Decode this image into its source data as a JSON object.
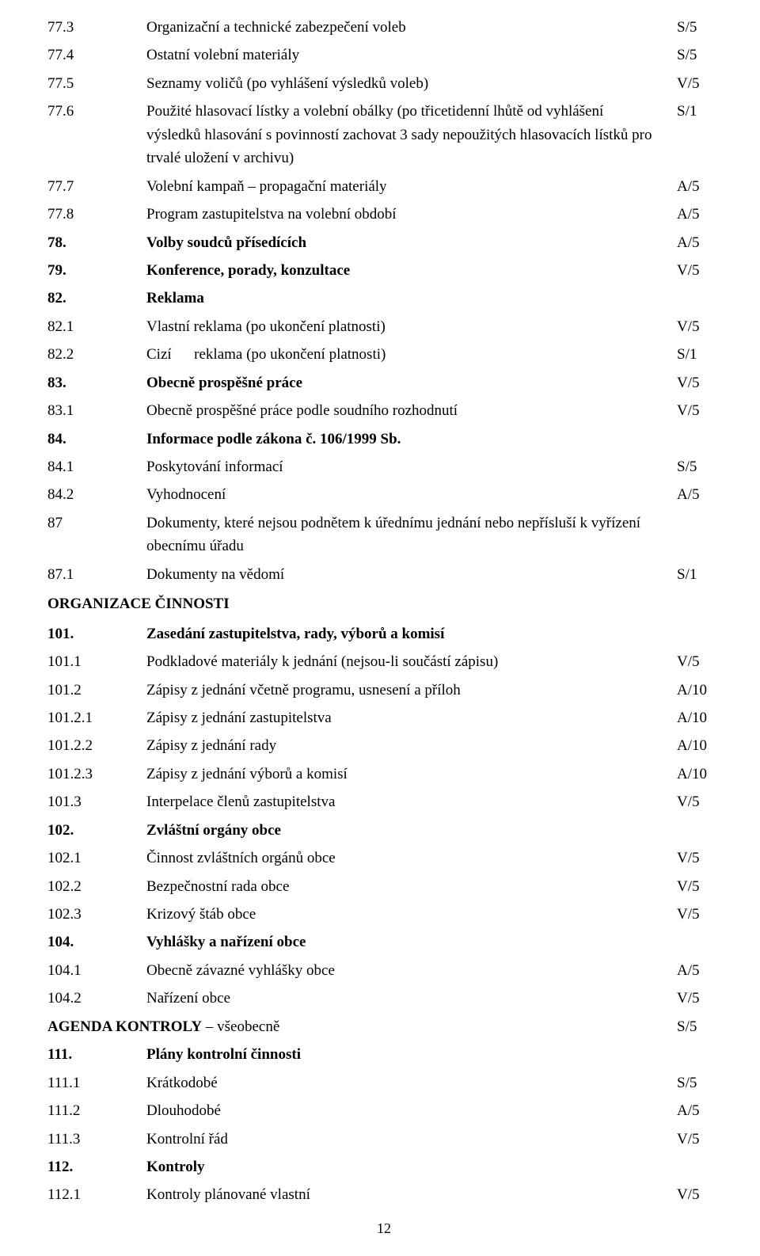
{
  "rows": [
    {
      "num": "77.3",
      "desc": "Organizační a technické zabezpečení voleb",
      "mark": "S/5"
    },
    {
      "num": "77.4",
      "desc": "Ostatní volební materiály",
      "mark": "S/5"
    },
    {
      "num": "77.5",
      "desc": "Seznamy voličů (po vyhlášení výsledků voleb)",
      "mark": "V/5"
    },
    {
      "num": "77.6",
      "desc": "Použité hlasovací lístky a volební obálky (po třicetidenní lhůtě od vyhlášení výsledků hlasování s povinností zachovat 3 sady nepoužitých hlasovacích lístků pro trvalé uložení v archivu)",
      "mark": "S/1"
    },
    {
      "num": "77.7",
      "desc": "Volební kampaň – propagační materiály",
      "mark": "A/5"
    },
    {
      "num": "77.8",
      "desc": "Program zastupitelstva na volební období",
      "mark": "A/5"
    },
    {
      "num": "78.",
      "desc": "Volby soudců přísedících",
      "mark": "A/5",
      "bold": true
    },
    {
      "num": "79.",
      "desc": "Konference, porady, konzultace",
      "mark": "V/5",
      "bold": true
    },
    {
      "num": "82.",
      "desc": "Reklama",
      "mark": "",
      "bold": true
    },
    {
      "num": "82.1",
      "desc": "Vlastní reklama (po ukončení platnosti)",
      "mark": "V/5"
    },
    {
      "num": "82.2",
      "desc": "Cizí      reklama (po ukončení platnosti)",
      "mark": "S/1"
    },
    {
      "num": "83.",
      "desc": "Obecně prospěšné práce",
      "mark": "V/5",
      "bold": true
    },
    {
      "num": "83.1",
      "desc": "Obecně prospěšné práce podle soudního rozhodnutí",
      "mark": "V/5"
    },
    {
      "num": "84.",
      "desc": "Informace podle zákona č. 106/1999 Sb.",
      "mark": "",
      "bold": true
    },
    {
      "num": "84.1",
      "desc": "Poskytování informací",
      "mark": "S/5"
    },
    {
      "num": "84.2",
      "desc": "Vyhodnocení",
      "mark": "A/5"
    },
    {
      "num": "87",
      "desc": "Dokumenty, které nejsou podnětem k úřednímu jednání nebo nepřísluší k vyřízení obecnímu úřadu",
      "mark": "",
      "serif": true
    },
    {
      "num": "87.1",
      "desc": "Dokumenty na vědomí",
      "mark": "S/1",
      "serif": true
    },
    {
      "section": "ORGANIZACE ČINNOSTI"
    },
    {
      "num": "101.",
      "desc": "Zasedání zastupitelstva, rady, výborů a komisí",
      "mark": "",
      "bold": true
    },
    {
      "num": "101.1",
      "desc": "Podkladové materiály k jednání (nejsou-li součástí zápisu)",
      "mark": "V/5"
    },
    {
      "num": "101.2",
      "desc": "Zápisy z jednání včetně programu, usnesení a příloh",
      "mark": "A/10"
    },
    {
      "num": "101.2.1",
      "desc": "Zápisy z jednání zastupitelstva",
      "mark": "A/10"
    },
    {
      "num": "101.2.2",
      "desc": "Zápisy z jednání rady",
      "mark": "A/10"
    },
    {
      "num": "101.2.3",
      "desc": "Zápisy z jednání výborů a komisí",
      "mark": "A/10"
    },
    {
      "num": "101.3",
      "desc": "Interpelace členů zastupitelstva",
      "mark": "V/5"
    },
    {
      "num": "102.",
      "desc": "Zvláštní orgány obce",
      "mark": "",
      "bold": true
    },
    {
      "num": "102.1",
      "desc": "Činnost zvláštních orgánů obce",
      "mark": "V/5"
    },
    {
      "num": "102.2",
      "desc": "Bezpečnostní rada obce",
      "mark": "V/5"
    },
    {
      "num": "102.3",
      "desc": "Krizový štáb obce",
      "mark": "V/5"
    },
    {
      "num": "104.",
      "desc": "Vyhlášky a nařízení obce",
      "mark": "",
      "bold": true
    },
    {
      "num": "104.1",
      "desc": "Obecně závazné vyhlášky obce",
      "mark": "A/5"
    },
    {
      "num": "104.2",
      "desc": "Nařízení obce",
      "mark": "V/5"
    },
    {
      "agendaNum": "AGENDA KONTROLY",
      "agendaDesc": " – všeobecně",
      "mark": "S/5"
    },
    {
      "num": "111.",
      "desc": "Plány kontrolní činnosti",
      "mark": "",
      "bold": true
    },
    {
      "num": "111.1",
      "desc": "Krátkodobé",
      "mark": "S/5"
    },
    {
      "num": "111.2",
      "desc": "Dlouhodobé",
      "mark": "A/5"
    },
    {
      "num": "111.3",
      "desc": "Kontrolní řád",
      "mark": "V/5"
    },
    {
      "num": "112.",
      "desc": "Kontroly",
      "mark": "",
      "bold": true
    },
    {
      "num": "112.1",
      "desc": "Kontroly plánované vlastní",
      "mark": "V/5"
    }
  ],
  "pageNumber": "12"
}
